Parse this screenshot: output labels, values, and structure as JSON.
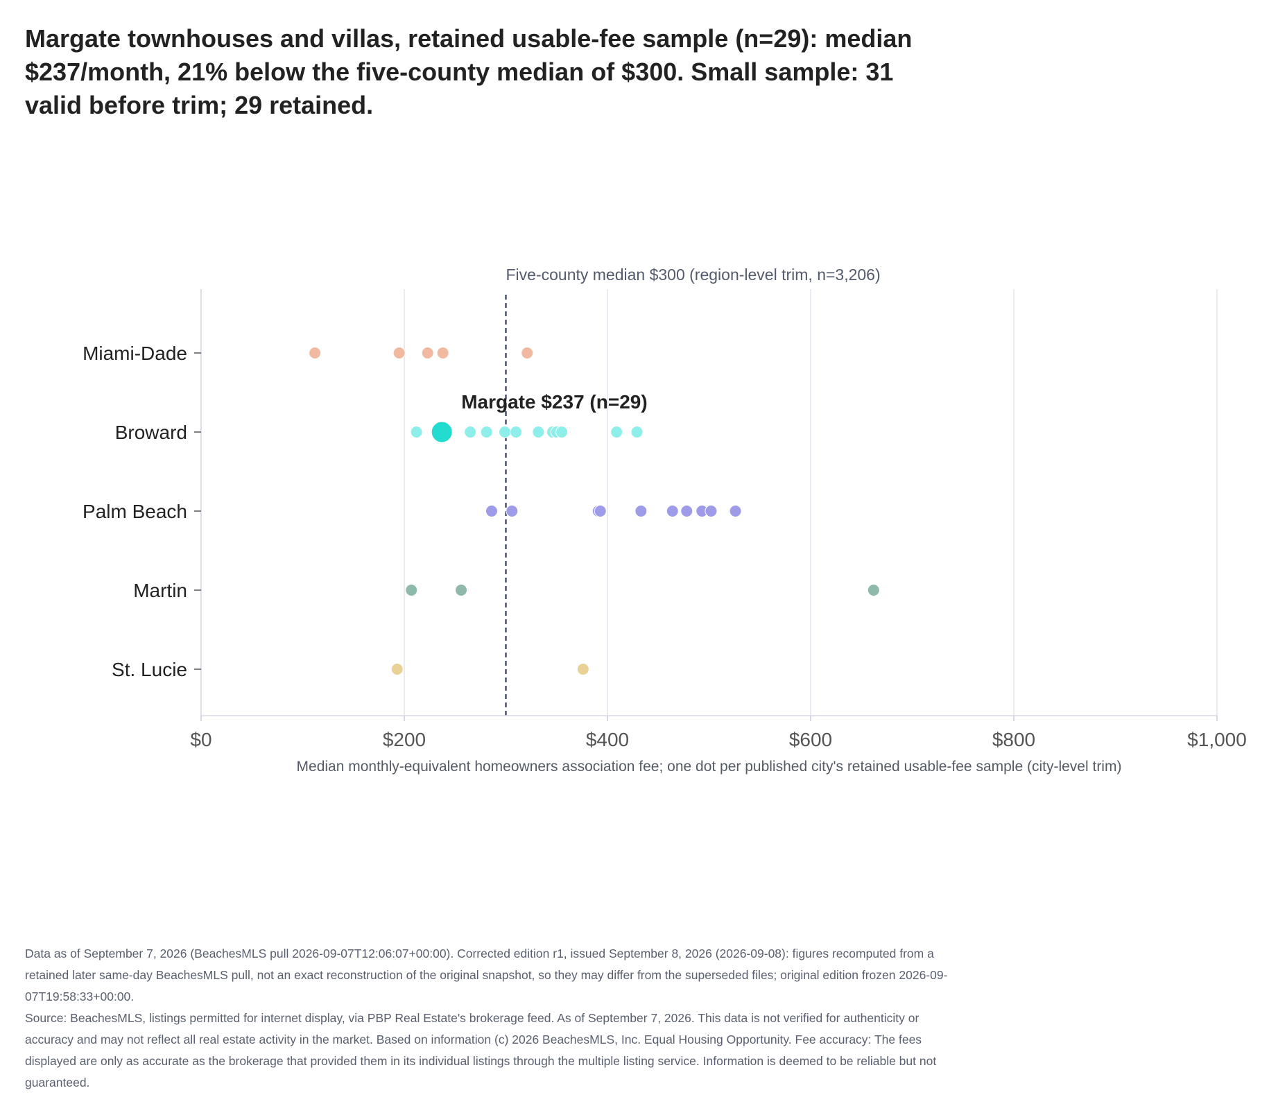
{
  "title": "Margate townhouses and villas, retained usable-fee sample (n=29): median $237/month, 21% below the five-county median of $300. Small sample: 31 valid before trim; 29 retained.",
  "footer": {
    "line1": "Data as of September 7, 2026 (BeachesMLS pull 2026-09-07T12:06:07+00:00). Corrected edition r1, issued September 8, 2026 (2026-09-08): figures recomputed from a retained later same-day BeachesMLS pull, not an exact reconstruction of the original snapshot, so they may differ from the superseded files; original edition frozen 2026-09-07T19:58:33+00:00.",
    "line2": "Source: BeachesMLS, listings permitted for internet display, via PBP Real Estate's brokerage feed. As of September 7, 2026. This data is not verified for authenticity or accuracy and may not reflect all real estate activity in the market. Based on information (c) 2026 BeachesMLS, Inc. Equal Housing Opportunity. Fee accuracy: The fees displayed are only as accurate as the brokerage that provided them in its individual listings through the multiple listing service. Information is deemed to be reliable but not guaranteed."
  },
  "chart_data": {
    "type": "scatter",
    "xlabel": "Median monthly-equivalent homeowners association fee; one dot per published city's retained usable-fee sample (city-level trim)",
    "xlim": [
      0,
      1000
    ],
    "x_ticks": [
      0,
      200,
      400,
      600,
      800,
      1000
    ],
    "x_tick_labels": [
      "$0",
      "$200",
      "$400",
      "$600",
      "$800",
      "$1,000"
    ],
    "grid": "vertical",
    "categories": [
      "Miami-Dade",
      "Broward",
      "Palm Beach",
      "Martin",
      "St. Lucie"
    ],
    "series": [
      {
        "name": "Miami-Dade",
        "color": "#f2b9a1",
        "values": [
          112,
          195,
          223,
          238,
          321
        ]
      },
      {
        "name": "Broward",
        "color": "#8eeeea",
        "values": [
          212,
          265,
          281,
          299,
          310,
          332,
          346,
          350,
          355,
          409,
          429
        ]
      },
      {
        "name": "Palm Beach",
        "color": "#9e9ce9",
        "values": [
          286,
          306,
          391,
          393,
          433,
          464,
          478,
          493,
          502,
          526
        ]
      },
      {
        "name": "Martin",
        "color": "#8fb9aa",
        "values": [
          207,
          256,
          662
        ]
      },
      {
        "name": "St. Lucie",
        "color": "#ead196",
        "values": [
          193,
          376
        ]
      }
    ],
    "highlight": {
      "category": "Broward",
      "value": 237,
      "color": "#22dccf",
      "label": "Margate $237 (n=29)"
    },
    "reference_line": {
      "value": 300,
      "label": "Five-county median $300 (region-level trim, n=3,206)",
      "color": "#4a5068"
    }
  }
}
